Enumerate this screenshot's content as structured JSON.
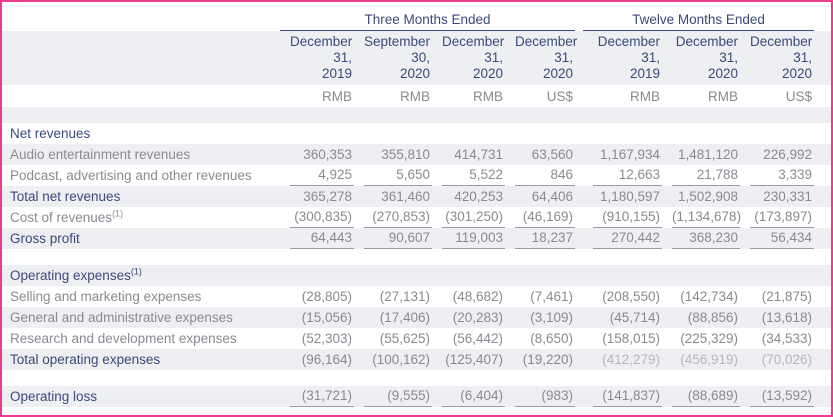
{
  "colors": {
    "border_pink": "#ee3a8d",
    "header_navy": "#3a4a7a",
    "text_gray": "#8a8a92",
    "faded_gray": "#b6b6bd",
    "stripe_gray": "#edeff2",
    "underline_gray": "#9a9aa1"
  },
  "table": {
    "group_headers": [
      {
        "label": "Three Months Ended",
        "colspan": 4
      },
      {
        "label": "Twelve Months Ended",
        "colspan": 3
      }
    ],
    "column_headers": [
      {
        "line1": "December",
        "line2": "31,",
        "line3": "2019",
        "currency": "RMB"
      },
      {
        "line1": "September",
        "line2": "30,",
        "line3": "2020",
        "currency": "RMB"
      },
      {
        "line1": "December",
        "line2": "31,",
        "line3": "2020",
        "currency": "RMB"
      },
      {
        "line1": "December",
        "line2": "31,",
        "line3": "2020",
        "currency": "US$"
      },
      {
        "line1": "December",
        "line2": "31,",
        "line3": "2019",
        "currency": "RMB"
      },
      {
        "line1": "December",
        "line2": "31,",
        "line3": "2020",
        "currency": "RMB"
      },
      {
        "line1": "December",
        "line2": "31,",
        "line3": "2020",
        "currency": "US$"
      }
    ],
    "rows": [
      {
        "label": "Net revenues",
        "style": "section",
        "values": [
          "",
          "",
          "",
          "",
          "",
          "",
          ""
        ]
      },
      {
        "label": "Audio entertainment revenues",
        "style": "item",
        "values": [
          "360,353",
          "355,810",
          "414,731",
          "63,560",
          "1,167,934",
          "1,481,120",
          "226,992"
        ]
      },
      {
        "label": "Podcast, advertising and other revenues",
        "style": "item",
        "underline": true,
        "values": [
          "4,925",
          "5,650",
          "5,522",
          "846",
          "12,663",
          "21,788",
          "3,339"
        ]
      },
      {
        "label": "Total net revenues",
        "style": "total",
        "values": [
          "365,278",
          "361,460",
          "420,253",
          "64,406",
          "1,180,597",
          "1,502,908",
          "230,331"
        ]
      },
      {
        "label": "Cost of revenues",
        "sup": "(1)",
        "style": "item",
        "underline": true,
        "values": [
          "(300,835)",
          "(270,853)",
          "(301,250)",
          "(46,169)",
          "(910,155)",
          "(1,134,678)",
          "(173,897)"
        ]
      },
      {
        "label": "Gross profit",
        "style": "total",
        "underline": true,
        "values": [
          "64,443",
          "90,607",
          "119,003",
          "18,237",
          "270,442",
          "368,230",
          "56,434"
        ]
      },
      {
        "label": "",
        "style": "spacer",
        "values": [
          "",
          "",
          "",
          "",
          "",
          "",
          ""
        ]
      },
      {
        "label": "Operating expenses",
        "sup": "(1)",
        "style": "section",
        "values": [
          "",
          "",
          "",
          "",
          "",
          "",
          ""
        ]
      },
      {
        "label": "Selling and marketing expenses",
        "style": "item",
        "values": [
          "(28,805)",
          "(27,131)",
          "(48,682)",
          "(7,461)",
          "(208,550)",
          "(142,734)",
          "(21,875)"
        ]
      },
      {
        "label": "General and administrative expenses",
        "style": "item",
        "values": [
          "(15,056)",
          "(17,406)",
          "(20,283)",
          "(3,109)",
          "(45,714)",
          "(88,856)",
          "(13,618)"
        ]
      },
      {
        "label": "Research and development expenses",
        "style": "item",
        "values": [
          "(52,303)",
          "(55,625)",
          "(56,442)",
          "(8,650)",
          "(158,015)",
          "(225,329)",
          "(34,533)"
        ]
      },
      {
        "label": "Total operating expenses",
        "style": "total",
        "faded": [
          4,
          5,
          6
        ],
        "values": [
          "(96,164)",
          "(100,162)",
          "(125,407)",
          "(19,220)",
          "(412,279)",
          "(456,919)",
          "(70,026)"
        ]
      },
      {
        "label": "",
        "style": "spacer",
        "values": [
          "",
          "",
          "",
          "",
          "",
          "",
          ""
        ]
      },
      {
        "label": "Operating loss",
        "style": "total",
        "underline": true,
        "values": [
          "(31,721)",
          "(9,555)",
          "(6,404)",
          "(983)",
          "(141,837)",
          "(88,689)",
          "(13,592)"
        ]
      }
    ]
  }
}
